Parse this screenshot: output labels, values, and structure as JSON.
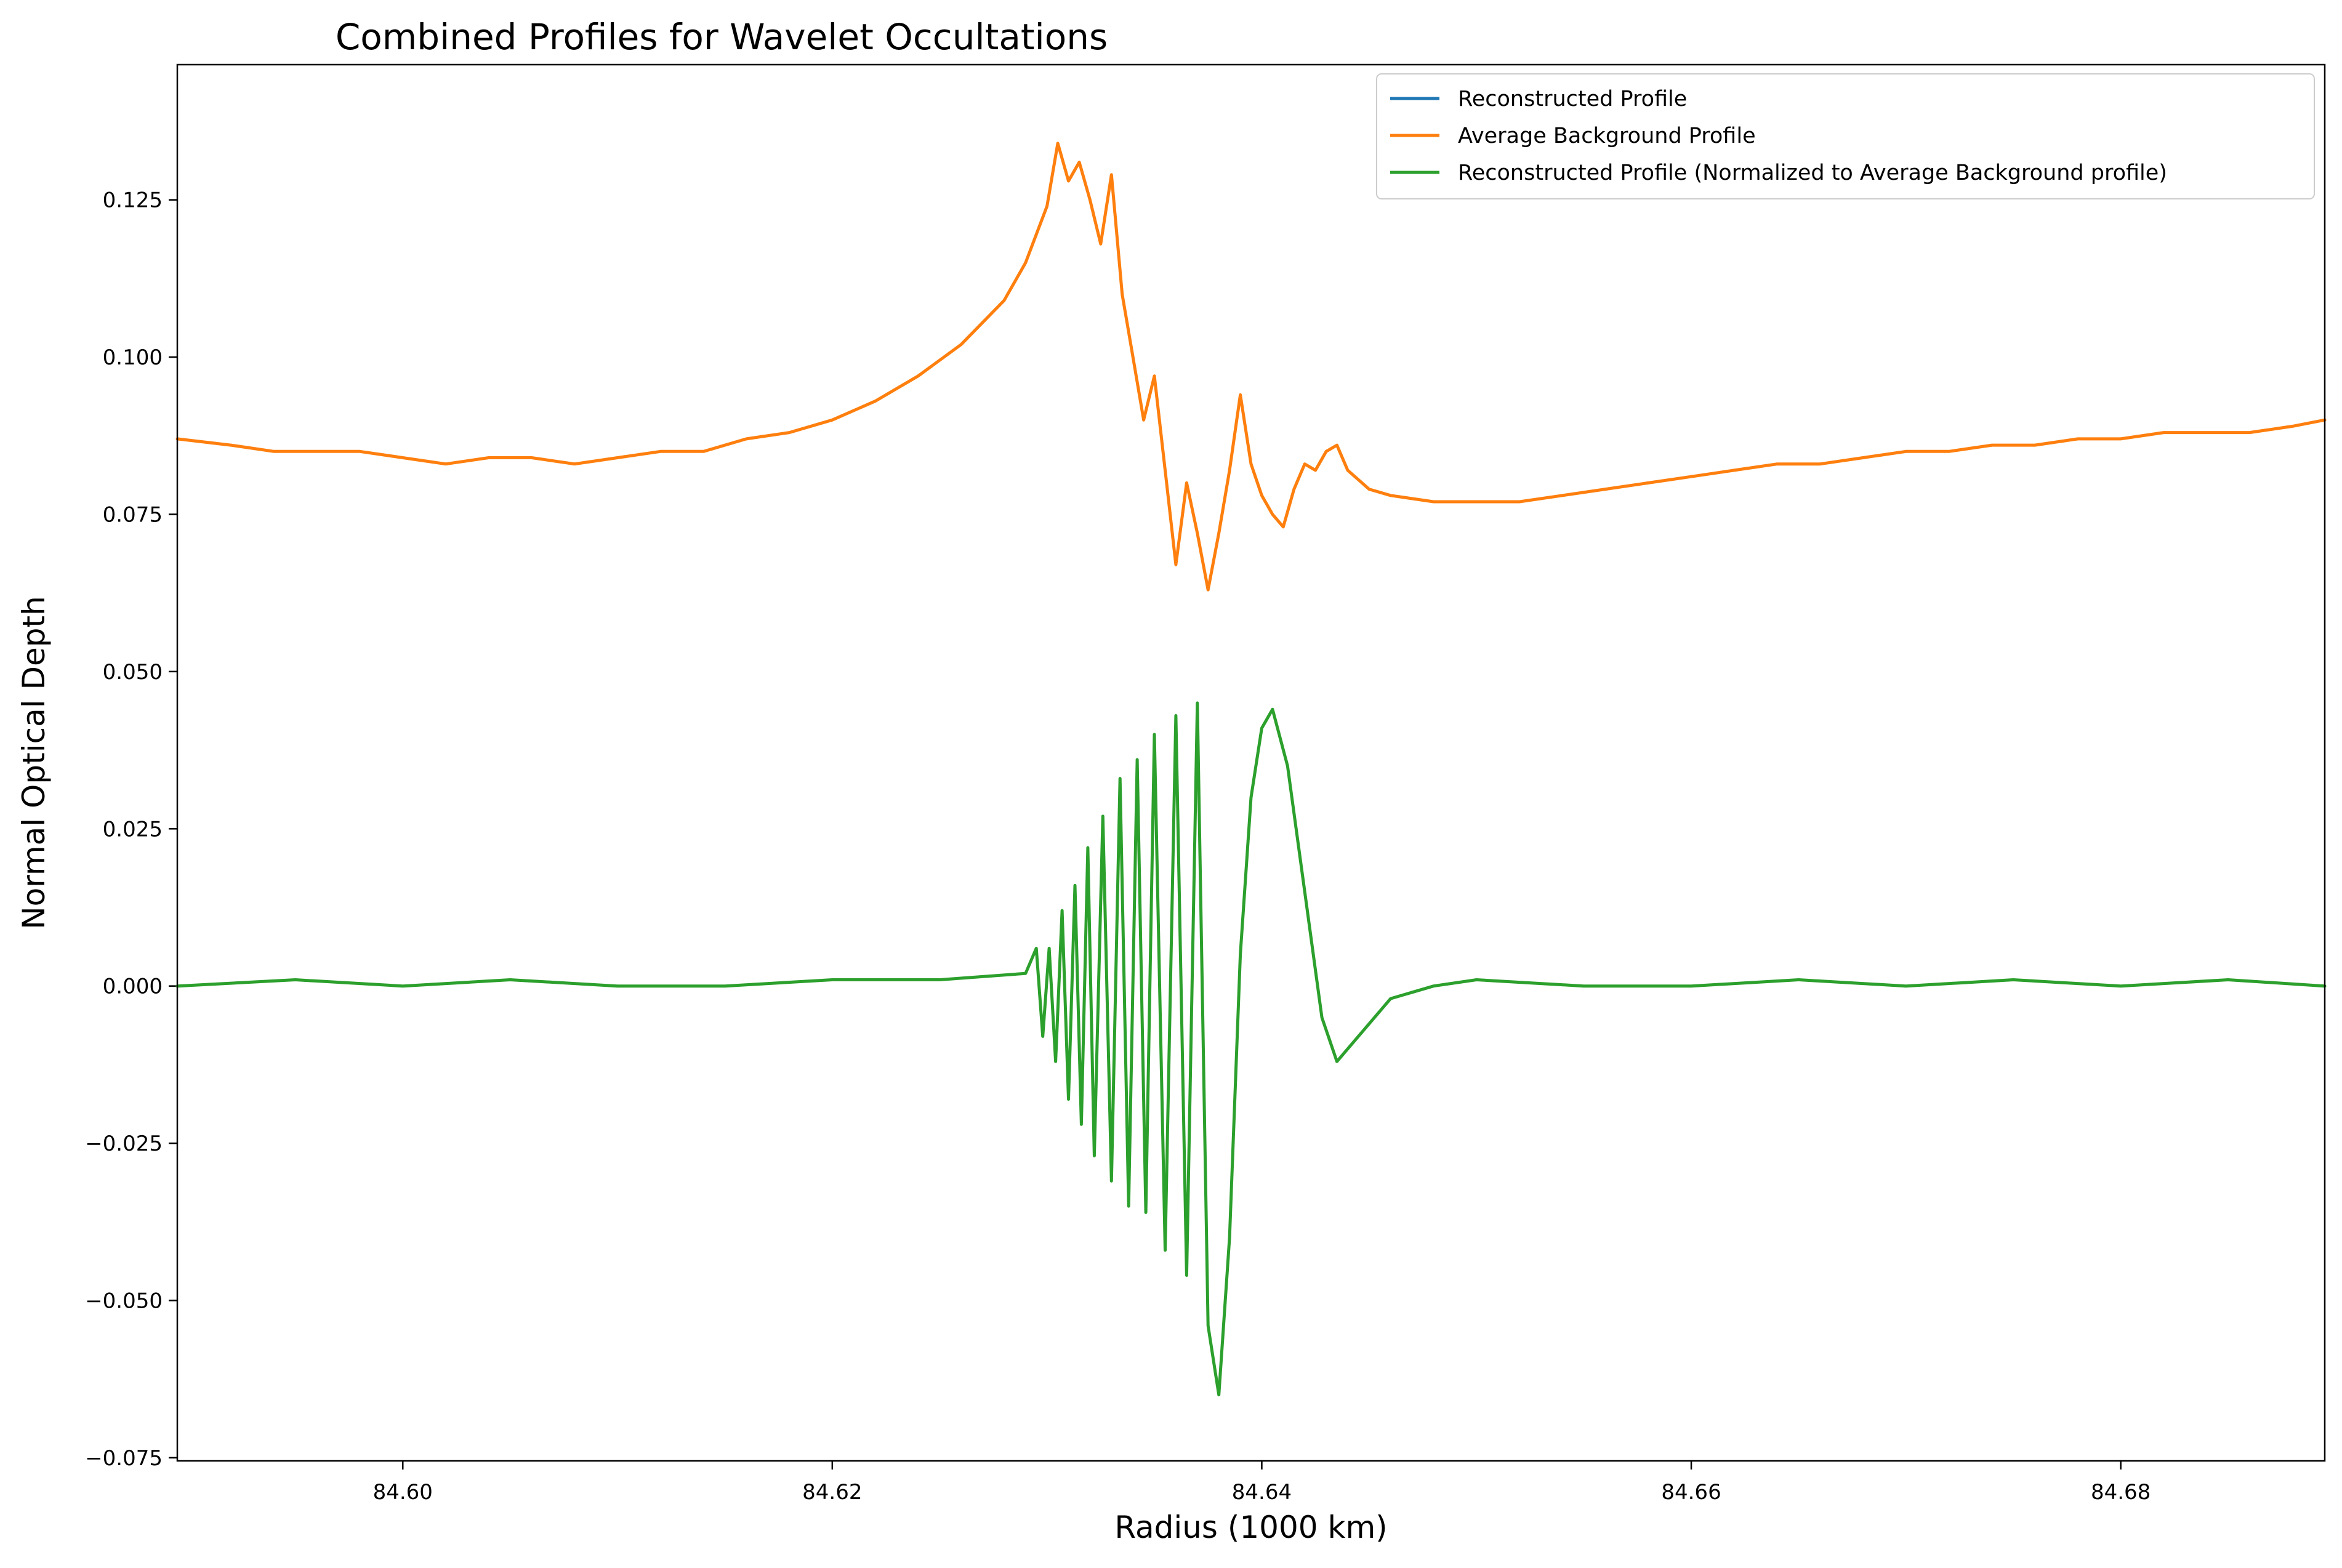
{
  "chart_data": {
    "type": "line",
    "title": "Combined Profiles for Wavelet Occultations",
    "xlabel": "Radius (1000 km)",
    "ylabel": "Normal Optical Depth",
    "xlim": [
      84.5895,
      84.6895
    ],
    "ylim": [
      -0.0755,
      0.1465
    ],
    "x_ticks": [
      84.6,
      84.62,
      84.64,
      84.66,
      84.68
    ],
    "x_tick_labels": [
      "84.60",
      "84.62",
      "84.64",
      "84.66",
      "84.68"
    ],
    "y_ticks": [
      -0.075,
      -0.05,
      -0.025,
      0.0,
      0.025,
      0.05,
      0.075,
      0.1,
      0.125
    ],
    "y_tick_labels": [
      "−0.075",
      "−0.050",
      "−0.025",
      "0.000",
      "0.025",
      "0.050",
      "0.075",
      "0.100",
      "0.125"
    ],
    "grid": false,
    "legend_position": "top-right",
    "series": [
      {
        "name": "Reconstructed Profile",
        "color": "#1f77b4",
        "x": [],
        "y": []
      },
      {
        "name": "Average Background Profile",
        "color": "#ff7f0e",
        "x": [
          84.5895,
          84.592,
          84.594,
          84.596,
          84.598,
          84.6,
          84.602,
          84.604,
          84.606,
          84.608,
          84.61,
          84.612,
          84.614,
          84.616,
          84.618,
          84.62,
          84.622,
          84.624,
          84.626,
          84.628,
          84.629,
          84.63,
          84.6305,
          84.631,
          84.6315,
          84.632,
          84.6325,
          84.633,
          84.6335,
          84.634,
          84.6345,
          84.635,
          84.6355,
          84.636,
          84.6365,
          84.637,
          84.6375,
          84.638,
          84.6385,
          84.639,
          84.6395,
          84.64,
          84.6405,
          84.641,
          84.6415,
          84.642,
          84.6425,
          84.643,
          84.6435,
          84.644,
          84.645,
          84.646,
          84.648,
          84.65,
          84.652,
          84.654,
          84.656,
          84.658,
          84.66,
          84.662,
          84.664,
          84.666,
          84.668,
          84.67,
          84.672,
          84.674,
          84.676,
          84.678,
          84.68,
          84.682,
          84.684,
          84.686,
          84.688,
          84.6895
        ],
        "y": [
          0.087,
          0.086,
          0.085,
          0.085,
          0.085,
          0.084,
          0.083,
          0.084,
          0.084,
          0.083,
          0.084,
          0.085,
          0.085,
          0.087,
          0.088,
          0.09,
          0.093,
          0.097,
          0.102,
          0.109,
          0.115,
          0.124,
          0.134,
          0.128,
          0.131,
          0.125,
          0.118,
          0.129,
          0.11,
          0.1,
          0.09,
          0.097,
          0.082,
          0.067,
          0.08,
          0.072,
          0.063,
          0.072,
          0.082,
          0.094,
          0.083,
          0.078,
          0.075,
          0.073,
          0.079,
          0.083,
          0.082,
          0.085,
          0.086,
          0.082,
          0.079,
          0.078,
          0.077,
          0.077,
          0.077,
          0.078,
          0.079,
          0.08,
          0.081,
          0.082,
          0.083,
          0.083,
          0.084,
          0.085,
          0.085,
          0.086,
          0.086,
          0.087,
          0.087,
          0.088,
          0.088,
          0.088,
          0.089,
          0.09
        ]
      },
      {
        "name": "Reconstructed Profile (Normalized to Average Background profile)",
        "color": "#2ca02c",
        "x": [
          84.5895,
          84.595,
          84.6,
          84.605,
          84.61,
          84.615,
          84.62,
          84.625,
          84.629,
          84.6295,
          84.6298,
          84.6301,
          84.6304,
          84.6307,
          84.631,
          84.6313,
          84.6316,
          84.6319,
          84.6322,
          84.6326,
          84.633,
          84.6334,
          84.6338,
          84.6342,
          84.6346,
          84.635,
          84.6355,
          84.636,
          84.6365,
          84.637,
          84.6375,
          84.638,
          84.6385,
          84.639,
          84.6395,
          84.64,
          84.6405,
          84.6412,
          84.642,
          84.6428,
          84.6435,
          84.644,
          84.645,
          84.646,
          84.648,
          84.65,
          84.655,
          84.66,
          84.665,
          84.67,
          84.675,
          84.68,
          84.685,
          84.6895
        ],
        "y": [
          0.0,
          0.001,
          0.0,
          0.001,
          0.0,
          0.0,
          0.001,
          0.001,
          0.002,
          0.006,
          -0.008,
          0.006,
          -0.012,
          0.012,
          -0.018,
          0.016,
          -0.022,
          0.022,
          -0.027,
          0.027,
          -0.031,
          0.033,
          -0.035,
          0.036,
          -0.036,
          0.04,
          -0.042,
          0.043,
          -0.046,
          0.045,
          -0.054,
          -0.065,
          -0.04,
          0.005,
          0.03,
          0.041,
          0.044,
          0.035,
          0.015,
          -0.005,
          -0.012,
          -0.01,
          -0.006,
          -0.002,
          0.0,
          0.001,
          0.0,
          0.0,
          0.001,
          0.0,
          0.001,
          0.0,
          0.001,
          0.0
        ]
      }
    ]
  }
}
